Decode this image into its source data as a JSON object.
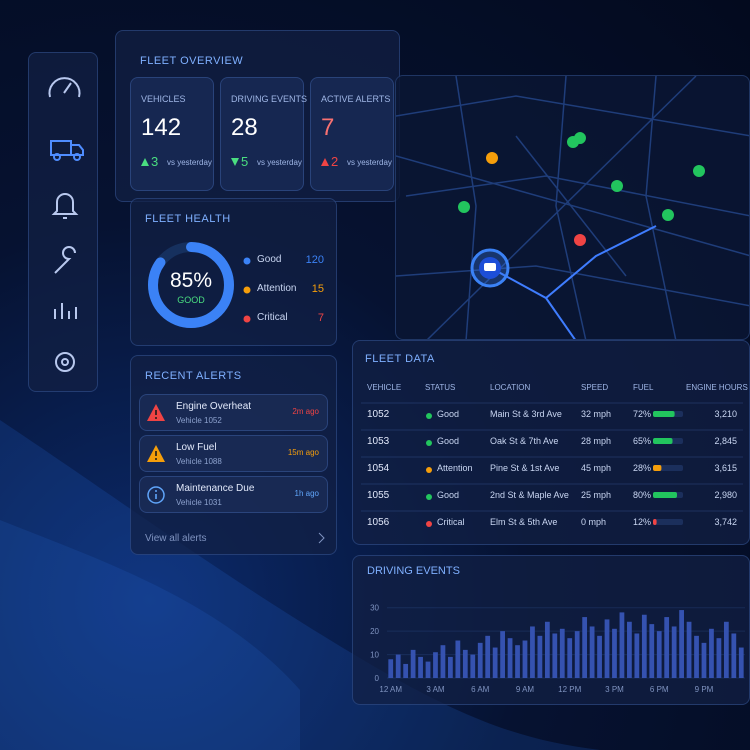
{
  "overview": {
    "title": "FLEET OVERVIEW",
    "cards": [
      {
        "label": "VEHICLES",
        "value": 142,
        "value_color": "#ffffff",
        "change": 3,
        "direction": "up",
        "change_color": "#4ade80",
        "note": "vs yesterday"
      },
      {
        "label": "DRIVING EVENTS",
        "value": 28,
        "value_color": "#ffffff",
        "change": 5,
        "direction": "down",
        "change_color": "#4ade80",
        "note": "vs yesterday"
      },
      {
        "label": "ACTIVE ALERTS",
        "value": 7,
        "value_color": "#f87171",
        "change": 2,
        "direction": "up",
        "change_color": "#ef4444",
        "note": "vs yesterday"
      }
    ]
  },
  "health": {
    "title": "FLEET HEALTH",
    "percent": 85,
    "percent_label": "85%",
    "status": "GOOD",
    "items": [
      {
        "name": "Good",
        "value": 120,
        "color": "#3b82f6"
      },
      {
        "name": "Attention",
        "value": 15,
        "color": "#f59e0b"
      },
      {
        "name": "Critical",
        "value": 7,
        "color": "#ef4444"
      }
    ]
  },
  "alerts": {
    "title": "RECENT ALERTS",
    "items": [
      {
        "title": "Engine Overheat",
        "vehicle": "Vehicle 1052",
        "time": "2m ago",
        "icon": "warning",
        "color": "#ef4444"
      },
      {
        "title": "Low Fuel",
        "vehicle": "Vehicle 1088",
        "time": "15m ago",
        "icon": "warning",
        "color": "#f59e0b"
      },
      {
        "title": "Maintenance Due",
        "vehicle": "Vehicle 1031",
        "time": "1h ago",
        "icon": "info",
        "color": "#60a5fa"
      }
    ],
    "link": "View all alerts"
  },
  "fleet_data": {
    "title": "FLEET DATA",
    "columns": [
      "VEHICLE",
      "STATUS",
      "LOCATION",
      "SPEED",
      "FUEL",
      "ENGINE HOURS"
    ],
    "rows": [
      {
        "vehicle": "1052",
        "status": "Good",
        "status_color": "#22c55e",
        "location": "Main St & 3rd Ave",
        "speed": "32 mph",
        "fuel": 72,
        "fuel_label": "72%",
        "fuel_color": "#22c55e",
        "hours": "3,210"
      },
      {
        "vehicle": "1053",
        "status": "Good",
        "status_color": "#22c55e",
        "location": "Oak St & 7th Ave",
        "speed": "28 mph",
        "fuel": 65,
        "fuel_label": "65%",
        "fuel_color": "#22c55e",
        "hours": "2,845"
      },
      {
        "vehicle": "1054",
        "status": "Attention",
        "status_color": "#f59e0b",
        "location": "Pine St & 1st Ave",
        "speed": "45 mph",
        "fuel": 28,
        "fuel_label": "28%",
        "fuel_color": "#f59e0b",
        "hours": "3,615"
      },
      {
        "vehicle": "1055",
        "status": "Good",
        "status_color": "#22c55e",
        "location": "2nd St & Maple Ave",
        "speed": "25 mph",
        "fuel": 80,
        "fuel_label": "80%",
        "fuel_color": "#22c55e",
        "hours": "2,980"
      },
      {
        "vehicle": "1056",
        "status": "Critical",
        "status_color": "#ef4444",
        "location": "Elm St & 5th Ave",
        "speed": "0 mph",
        "fuel": 12,
        "fuel_label": "12%",
        "fuel_color": "#ef4444",
        "hours": "3,742"
      }
    ]
  },
  "chart_data": {
    "type": "bar",
    "title": "DRIVING EVENTS",
    "color": "#3552b0",
    "categories": [
      "12 AM",
      null,
      null,
      null,
      null,
      null,
      "3 AM",
      null,
      null,
      null,
      null,
      null,
      "6 AM",
      null,
      null,
      null,
      null,
      null,
      "9 AM",
      null,
      null,
      null,
      null,
      null,
      "12 PM",
      null,
      null,
      null,
      null,
      null,
      "3 PM",
      null,
      null,
      null,
      null,
      null,
      "6 PM",
      null,
      null,
      null,
      null,
      null,
      "9 PM",
      null,
      null,
      null,
      null,
      null
    ],
    "values": [
      8,
      10,
      6,
      12,
      9,
      7,
      11,
      14,
      9,
      16,
      12,
      10,
      15,
      18,
      13,
      20,
      17,
      14,
      16,
      22,
      18,
      24,
      19,
      21,
      17,
      20,
      26,
      22,
      18,
      25,
      21,
      28,
      24,
      19,
      27,
      23,
      20,
      26,
      22,
      29,
      24,
      18,
      15,
      21,
      17,
      24,
      19,
      13
    ],
    "ylim": [
      0,
      35
    ],
    "yticks": [
      0,
      10,
      20,
      30
    ]
  }
}
